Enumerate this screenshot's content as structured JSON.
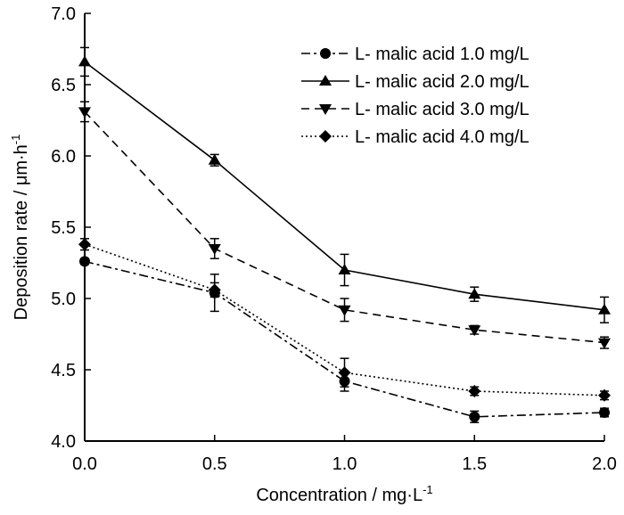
{
  "chart_data": {
    "type": "line",
    "title": "",
    "xlabel_main": "Concentration / mg·L",
    "xlabel_sup": "-1",
    "ylabel_main": "Deposition rate / μm·h",
    "ylabel_sup": "-1",
    "xlim": [
      0.0,
      2.0
    ],
    "ylim": [
      4.0,
      7.0
    ],
    "x_ticks": [
      "0.0",
      "0.5",
      "1.0",
      "1.5",
      "2.0"
    ],
    "y_ticks": [
      "4.0",
      "4.5",
      "5.0",
      "5.5",
      "6.0",
      "6.5",
      "7.0"
    ],
    "x": [
      0.0,
      0.5,
      1.0,
      1.5,
      2.0
    ],
    "legend_position": "top-right",
    "grid": false,
    "series": [
      {
        "name": "L- malic acid 1.0 mg/L",
        "marker": "circle",
        "line_style": "dash-dot",
        "values": [
          5.26,
          5.04,
          4.42,
          4.17,
          4.2
        ],
        "errors": [
          0.02,
          0.13,
          0.07,
          0.04,
          0.03
        ]
      },
      {
        "name": "L- malic acid 2.0 mg/L",
        "marker": "triangle-up",
        "line_style": "solid",
        "values": [
          6.66,
          5.97,
          5.2,
          5.03,
          4.92
        ],
        "errors": [
          0.1,
          0.04,
          0.11,
          0.05,
          0.09
        ]
      },
      {
        "name": "L- malic acid 3.0 mg/L",
        "marker": "triangle-down",
        "line_style": "dashed",
        "values": [
          6.31,
          5.35,
          4.92,
          4.78,
          4.69
        ],
        "errors": [
          0.07,
          0.07,
          0.08,
          0.03,
          0.04
        ]
      },
      {
        "name": "L- malic acid 4.0 mg/L",
        "marker": "diamond",
        "line_style": "dotted",
        "values": [
          5.38,
          5.06,
          4.48,
          4.35,
          4.32
        ],
        "errors": [
          0.04,
          0.05,
          0.1,
          0.03,
          0.03
        ]
      }
    ]
  }
}
